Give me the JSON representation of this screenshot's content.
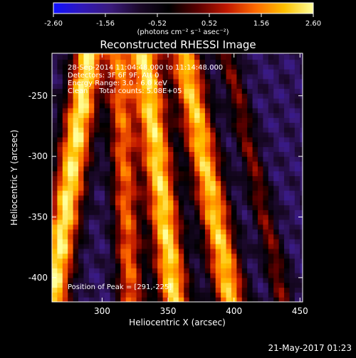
{
  "chart_data": {
    "type": "heatmap",
    "title": "Reconstructed RHESSI Image",
    "xlabel": "Heliocentric X (arcsec)",
    "ylabel": "Heliocentric Y (arcsec)",
    "xlim": [
      262,
      452
    ],
    "ylim": [
      -420,
      -215
    ],
    "x_ticks": [
      300,
      350,
      400,
      450
    ],
    "y_ticks": [
      -250,
      -300,
      -350,
      -400
    ],
    "x_tick_labels": [
      "300",
      "350",
      "400",
      "450"
    ],
    "y_tick_labels": [
      "-250",
      "-300",
      "-350",
      "-400"
    ],
    "colorbar": {
      "range": [
        -2.6,
        2.6
      ],
      "tick_values": [
        -2.6,
        -1.56,
        -0.52,
        0.52,
        1.56,
        2.6
      ],
      "tick_labels": [
        "-2.60",
        "-1.56",
        "-0.52",
        "0.52",
        "1.56",
        "2.60"
      ],
      "units_label": "(photons cm⁻² s⁻¹ asec⁻²)",
      "colors": [
        "#1010ff",
        "#3018b8",
        "#3a1a7a",
        "#1a0828",
        "#000000",
        "#5a0000",
        "#c01800",
        "#ff6a00",
        "#ffc000",
        "#ffff9a"
      ]
    },
    "annotations": {
      "time_range": "28-Sep-2014 11:04:48.000 to 11:14:48.000",
      "detectors": "Detectors: 3F 6F 9F, Att 0",
      "energy_range": "Energy Range: 3.0 - 6.0 keV",
      "clean_counts": "Clean     Total counts: 5.08E+05",
      "peak": "Position of Peak = [291,-225]"
    },
    "grid": false,
    "ridges": [
      {
        "x_top": 290,
        "x_bottom": 262,
        "width": 12,
        "intensity": 2.3
      },
      {
        "x_top": 312,
        "x_bottom": 322,
        "width": 10,
        "intensity": 1.6
      },
      {
        "x_top": 332,
        "x_bottom": 355,
        "width": 12,
        "intensity": 2.2
      },
      {
        "x_top": 362,
        "x_bottom": 398,
        "width": 12,
        "intensity": 2.1
      },
      {
        "x_top": 395,
        "x_bottom": 438,
        "width": 8,
        "intensity": 1.0
      }
    ]
  },
  "footer": {
    "date": "21-May-2017 01:23"
  }
}
